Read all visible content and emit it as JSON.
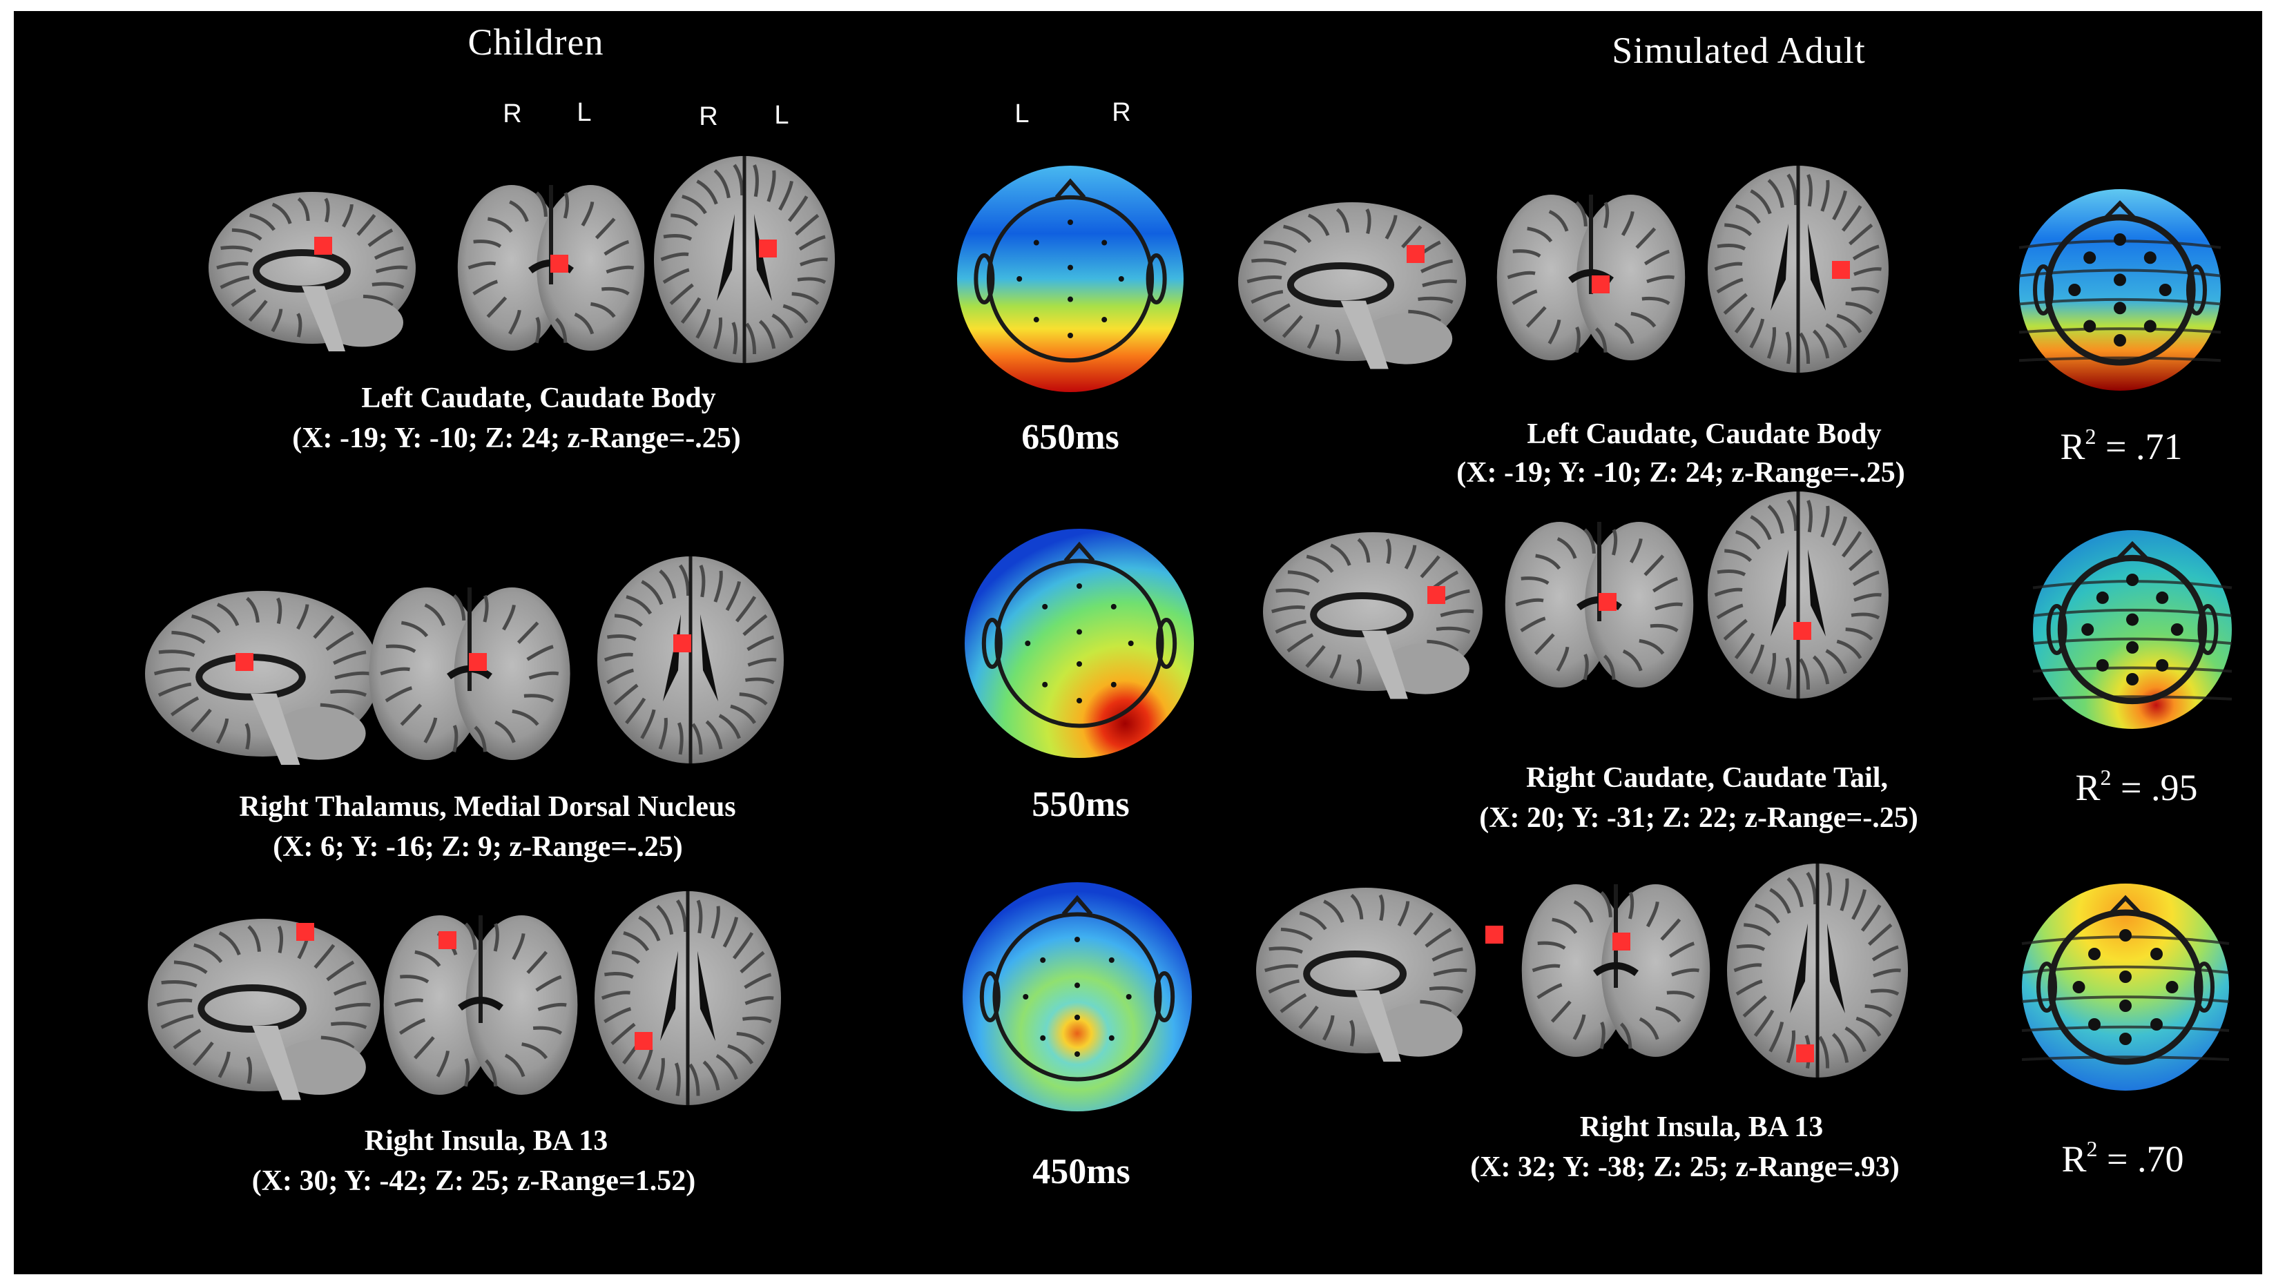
{
  "headers": {
    "children": "Children",
    "simulated_adult": "Simulated Adult"
  },
  "orientation_labels": {
    "coronal": [
      "R",
      "L"
    ],
    "axial": [
      "R",
      "L"
    ],
    "topomap": [
      "L",
      "R"
    ]
  },
  "children_rows": [
    {
      "region": "Left Caudate, Caudate Body",
      "coords": "(X: -19; Y: -10; Z: 24; z-Range=-.25)",
      "time": "650ms",
      "topomap_pattern": "blue-top-red-bottom"
    },
    {
      "region": "Right Thalamus, Medial Dorsal Nucleus",
      "coords": "(X: 6; Y: -16; Z: 9; z-Range=-.25)",
      "time": "550ms",
      "topomap_pattern": "green-center-red-bottom-right"
    },
    {
      "region": "Right Insula, BA 13",
      "coords": "(X: 30; Y: -42; Z: 25; z-Range=1.52)",
      "time": "450ms",
      "topomap_pattern": "yellow-top-blue-sides-red-center"
    }
  ],
  "adult_rows": [
    {
      "region": "Left Caudate, Caudate Body",
      "coords": "(X: -19; Y: -10; Z: 24; z-Range=-.25)",
      "r2_label": "R",
      "r2_exp": "2",
      "r2_value": " = .71"
    },
    {
      "region": "Right Caudate, Caudate Tail,",
      "coords": "(X: 20; Y: -31; Z: 22; z-Range=-.25)",
      "r2_label": "R",
      "r2_exp": "2",
      "r2_value": " = .95"
    },
    {
      "region": "Right Insula, BA 13",
      "coords": "(X: 32; Y: -38; Z: 25; z-Range=.93)",
      "r2_label": "R",
      "r2_exp": "2",
      "r2_value": " = .70"
    }
  ],
  "colors": {
    "background": "#000000",
    "marker": "#ff3030",
    "brain_light": "#d8d8d8",
    "brain_dark": "#202020",
    "topomap_scale": [
      "#0050c8",
      "#30a0ff",
      "#40d0c0",
      "#a0e040",
      "#f8e030",
      "#f89020",
      "#e02010",
      "#a00000"
    ]
  }
}
